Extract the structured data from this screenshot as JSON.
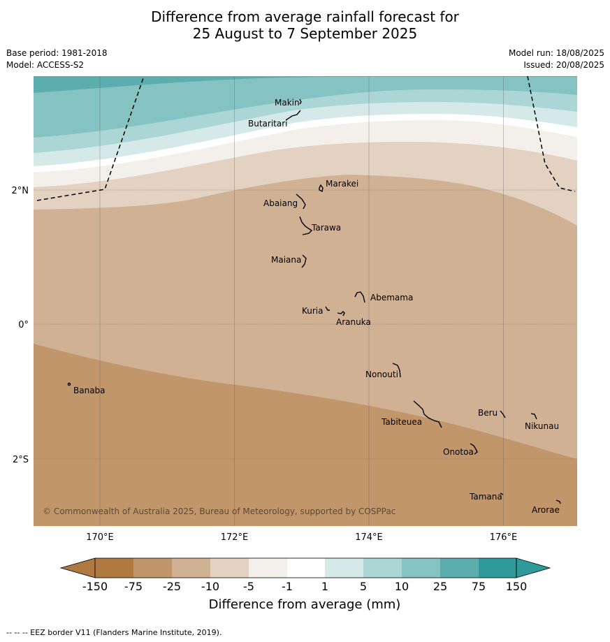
{
  "title": {
    "line1": "Difference from average rainfall forecast for",
    "line2": "25 August to 7 September 2025"
  },
  "meta": {
    "base_period": "Base period: 1981-2018",
    "model": "Model: ACCESS-S2",
    "model_run": "Model run: 18/08/2025",
    "issued": "Issued: 20/08/2025"
  },
  "map": {
    "copyright": "© Commonwealth of Australia 2025, Bureau of Meteorology, supported by COSPPac",
    "lon_labels": [
      "170°E",
      "172°E",
      "174°E",
      "176°E"
    ],
    "lat_labels": [
      "2°N",
      "0°",
      "2°S"
    ],
    "islands": [
      {
        "name": "Makin"
      },
      {
        "name": "Butaritari"
      },
      {
        "name": "Marakei"
      },
      {
        "name": "Abaiang"
      },
      {
        "name": "Tarawa"
      },
      {
        "name": "Maiana"
      },
      {
        "name": "Abemama"
      },
      {
        "name": "Kuria"
      },
      {
        "name": "Aranuka"
      },
      {
        "name": "Banaba"
      },
      {
        "name": "Nonouti"
      },
      {
        "name": "Beru"
      },
      {
        "name": "Nikunau"
      },
      {
        "name": "Tabiteuea"
      },
      {
        "name": "Onotoa"
      },
      {
        "name": "Tamana"
      },
      {
        "name": "Arorae"
      }
    ],
    "colors": {
      "minus150_to_minus75": "#b07941",
      "minus75_to_minus25": "#c1966b",
      "minus25_to_minus10": "#d1b194",
      "minus10_to_minus5": "#e3d1c1",
      "minus5_to_minus1": "#f3efea",
      "minus1_to_1": "#ffffff",
      "1_to_5": "#d5e9e9",
      "5_to_10": "#acd6d6",
      "10_to_25": "#85c2c2",
      "25_to_75": "#5cadad",
      "75_to_150": "#2f9a9a"
    }
  },
  "colorbar": {
    "ticks": [
      "-150",
      "-75",
      "-25",
      "-10",
      "-5",
      "-1",
      "1",
      "5",
      "10",
      "25",
      "75",
      "150"
    ],
    "colors": [
      "#b07941",
      "#c1966b",
      "#d1b194",
      "#e3d1c1",
      "#f3efea",
      "#ffffff",
      "#d5e9e9",
      "#acd6d6",
      "#85c2c2",
      "#5cadad",
      "#2f9a9a"
    ],
    "title": "Difference from average (mm)"
  },
  "footnote": "--  --  -- EEZ border V11 (Flanders Marine Institute, 2019)."
}
